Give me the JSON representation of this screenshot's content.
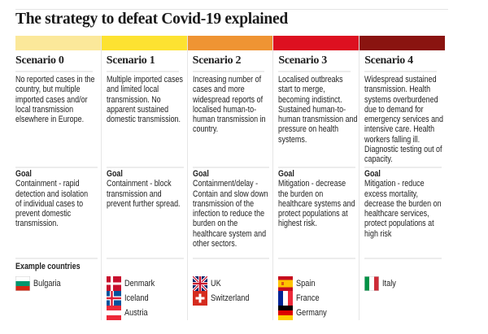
{
  "title": "The strategy to defeat Covid-19 explained",
  "goal_label": "Goal",
  "example_countries_label": "Example countries",
  "scenarios": [
    {
      "name": "Scenario 0",
      "color": "#fbe89a",
      "description": "No reported cases in the country, but multiple imported cases and/or local transmission elsewhere in Europe.",
      "goal": "Containment - rapid detection and isolation of individual cases to prevent domestic transmission.",
      "countries": [
        {
          "name": "Bulgaria",
          "flag": "bulgaria"
        }
      ]
    },
    {
      "name": "Scenario 1",
      "color": "#fde231",
      "description": "Multiple imported cases and limited local transmission. No apparent sustained domestic transmission.",
      "goal": "Containment - block transmission and prevent further spread.",
      "countries": [
        {
          "name": "Denmark",
          "flag": "denmark"
        },
        {
          "name": "Iceland",
          "flag": "iceland"
        },
        {
          "name": "Austria",
          "flag": "austria"
        }
      ]
    },
    {
      "name": "Scenario 2",
      "color": "#ef9433",
      "description": "Increasing number of cases and more widespread reports of localised human-to-human transmission in country.",
      "goal": "Containment/delay - Contain and slow down transmission of the infection to reduce the burden on the healthcare system and other sectors.",
      "countries": [
        {
          "name": "UK",
          "flag": "uk"
        },
        {
          "name": "Switzerland",
          "flag": "switzerland"
        }
      ]
    },
    {
      "name": "Scenario 3",
      "color": "#dd1020",
      "description": "Localised outbreaks start to merge, becoming indistinct. Sustained human-to-human transmission and pressure on health systems.",
      "goal": "Mitigation - decrease the burden on healthcare systems and protect populations at highest risk.",
      "countries": [
        {
          "name": "Spain",
          "flag": "spain"
        },
        {
          "name": "France",
          "flag": "france"
        },
        {
          "name": "Germany",
          "flag": "germany"
        }
      ]
    },
    {
      "name": "Scenario 4",
      "color": "#8a1410",
      "description": "Widespread sustained transmission. Health systems overburdened due to demand for emergency services and intensive care. Health workers falling ill. Diagnostic testing out of capacity.",
      "goal": "Mitigation - reduce excess mortality, decrease the burden on healthcare services, protect populations at high risk",
      "countries": [
        {
          "name": "Italy",
          "flag": "italy"
        }
      ]
    }
  ]
}
